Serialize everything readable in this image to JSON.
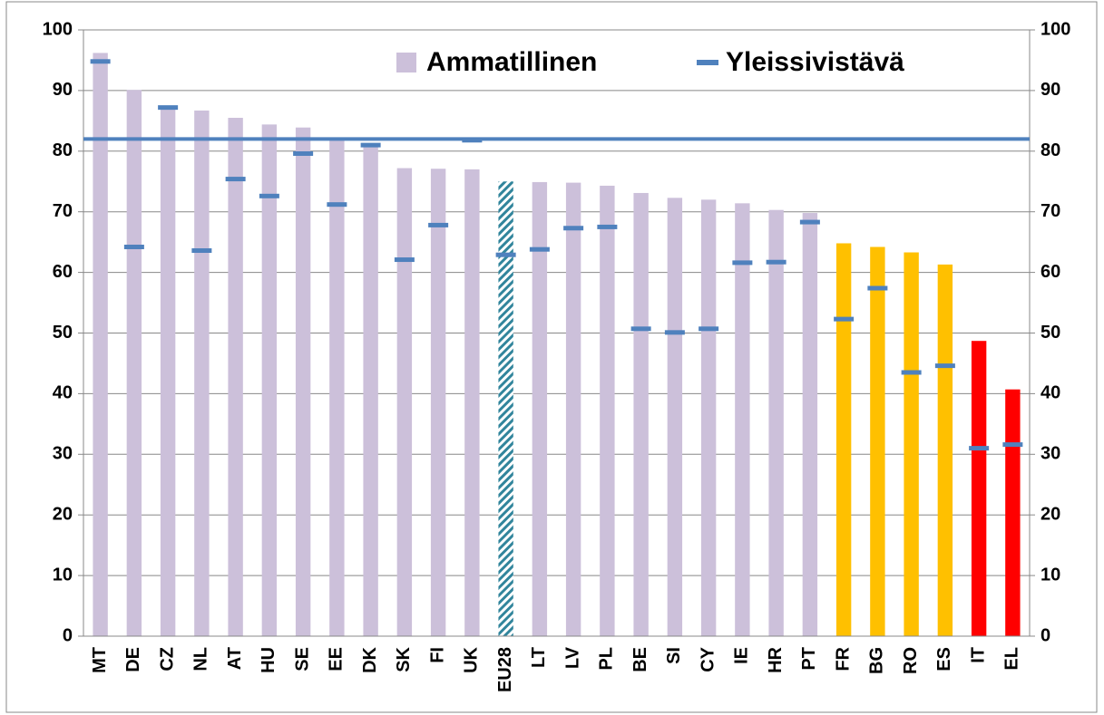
{
  "chart_data": {
    "type": "bar",
    "categories": [
      "MT",
      "DE",
      "CZ",
      "NL",
      "AT",
      "HU",
      "SE",
      "EE",
      "DK",
      "SK",
      "FI",
      "UK",
      "EU28",
      "LT",
      "LV",
      "PL",
      "BE",
      "SI",
      "CY",
      "IE",
      "HR",
      "PT",
      "FR",
      "BG",
      "RO",
      "ES",
      "IT",
      "EL"
    ],
    "series": [
      {
        "name": "Ammatillinen",
        "color": "#ccc0da",
        "colors": [
          "#ccc0da",
          "#ccc0da",
          "#ccc0da",
          "#ccc0da",
          "#ccc0da",
          "#ccc0da",
          "#ccc0da",
          "#ccc0da",
          "#ccc0da",
          "#ccc0da",
          "#ccc0da",
          "#ccc0da",
          "#31859c",
          "#ccc0da",
          "#ccc0da",
          "#ccc0da",
          "#ccc0da",
          "#ccc0da",
          "#ccc0da",
          "#ccc0da",
          "#ccc0da",
          "#ccc0da",
          "#ffc000",
          "#ffc000",
          "#ffc000",
          "#ffc000",
          "#ff0000",
          "#ff0000"
        ],
        "values": [
          96.2,
          90.1,
          87.5,
          86.7,
          85.5,
          84.4,
          83.9,
          82.0,
          80.7,
          77.2,
          77.1,
          77.0,
          75.0,
          74.9,
          74.8,
          74.3,
          73.1,
          72.3,
          72.0,
          71.4,
          70.3,
          69.8,
          64.8,
          64.2,
          63.3,
          61.3,
          48.7,
          40.7
        ]
      },
      {
        "name": "Yleissivistävä",
        "color": "#4f81bd",
        "values": [
          94.8,
          64.2,
          87.2,
          63.6,
          75.4,
          72.6,
          79.6,
          71.2,
          81.0,
          62.1,
          67.8,
          81.8,
          62.9,
          63.8,
          67.3,
          67.5,
          50.7,
          50.1,
          50.7,
          61.6,
          61.7,
          68.3,
          52.3,
          57.4,
          43.5,
          44.6,
          31.0,
          31.6
        ]
      }
    ],
    "hatched_categories": [
      "EU28"
    ],
    "reference_line": {
      "value": 82,
      "color": "#4f81bd"
    },
    "ylim": [
      0,
      100
    ],
    "yticks": [
      0,
      10,
      20,
      30,
      40,
      50,
      60,
      70,
      80,
      90,
      100
    ],
    "y2lim": [
      0,
      100
    ],
    "y2ticks": [
      0,
      10,
      20,
      30,
      40,
      50,
      60,
      70,
      80,
      90,
      100
    ],
    "grid": true,
    "legend": "top"
  }
}
